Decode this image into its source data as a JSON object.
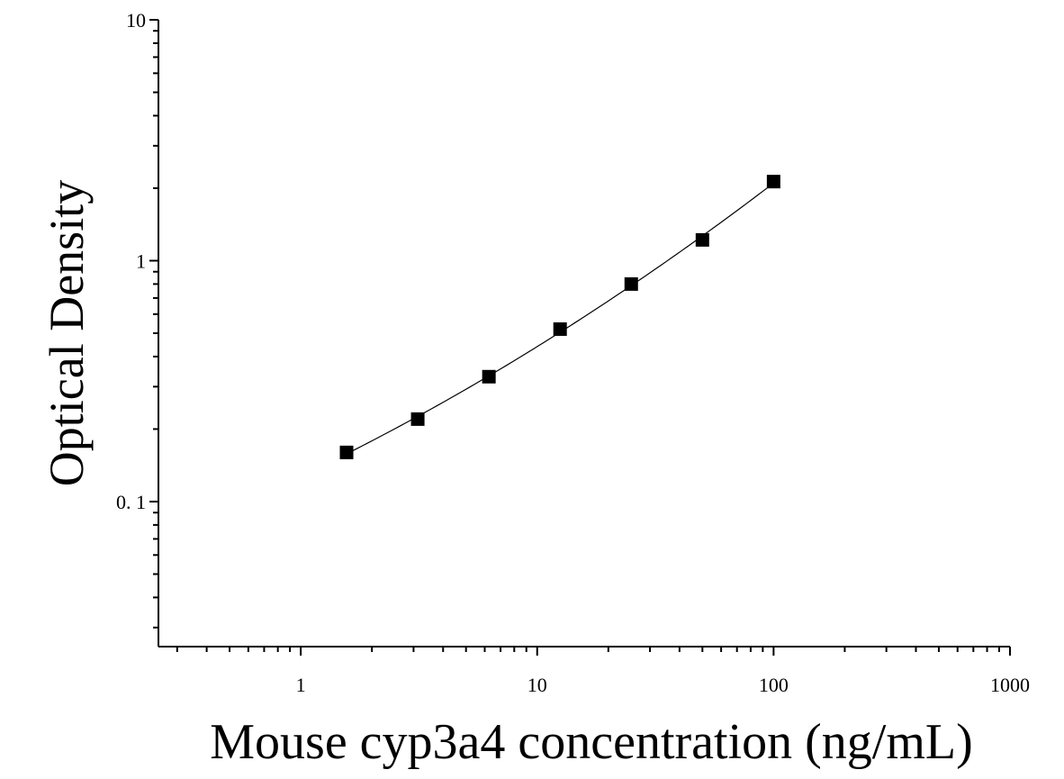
{
  "chart_data": {
    "type": "scatter",
    "title": "",
    "xlabel": "Mouse cyp3a4 concentration (ng/mL)",
    "ylabel": "Optical Density",
    "x_scale": "log",
    "y_scale": "log",
    "xlim": [
      0.25,
      1000
    ],
    "ylim": [
      0.025,
      10
    ],
    "x_ticks": [
      {
        "value": 1,
        "label": "1"
      },
      {
        "value": 10,
        "label": "10"
      },
      {
        "value": 100,
        "label": "100"
      },
      {
        "value": 1000,
        "label": "1000"
      }
    ],
    "y_ticks": [
      {
        "value": 0.1,
        "label": "0. 1"
      },
      {
        "value": 1,
        "label": "1"
      },
      {
        "value": 10,
        "label": "10"
      }
    ],
    "grid": false,
    "series": [
      {
        "marker": "square",
        "color": "#000000",
        "x": [
          1.5625,
          3.125,
          6.25,
          12.5,
          25,
          50,
          100
        ],
        "y": [
          0.16,
          0.22,
          0.33,
          0.52,
          0.8,
          1.22,
          2.13
        ]
      }
    ],
    "fit_curve": {
      "color": "#000000",
      "x_range": [
        1.5625,
        100
      ]
    }
  }
}
